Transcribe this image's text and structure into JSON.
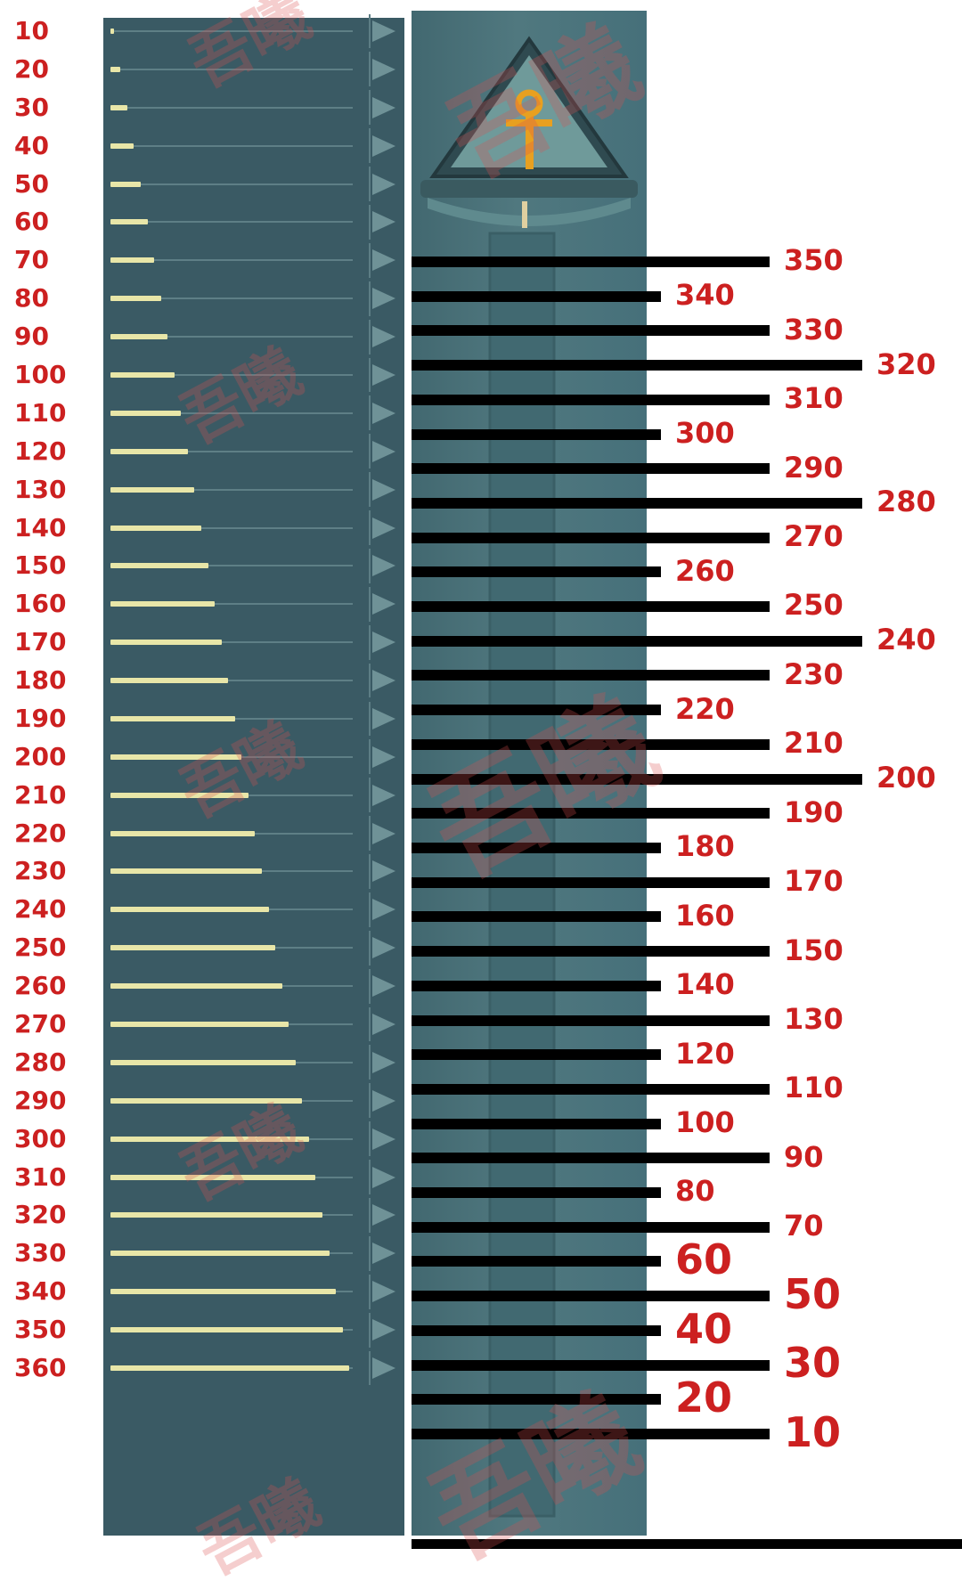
{
  "left_scale": {
    "labels": [
      "10",
      "20",
      "30",
      "40",
      "50",
      "60",
      "70",
      "80",
      "90",
      "100",
      "110",
      "120",
      "130",
      "140",
      "150",
      "160",
      "170",
      "180",
      "190",
      "200",
      "210",
      "220",
      "230",
      "240",
      "250",
      "260",
      "270",
      "280",
      "290",
      "300",
      "310",
      "320",
      "330",
      "340",
      "350",
      "360"
    ],
    "values": [
      10,
      20,
      30,
      40,
      50,
      60,
      70,
      80,
      90,
      100,
      110,
      120,
      130,
      140,
      150,
      160,
      170,
      180,
      190,
      200,
      210,
      220,
      230,
      240,
      250,
      260,
      270,
      280,
      290,
      300,
      310,
      320,
      330,
      340,
      350,
      360
    ],
    "max_value": 360
  },
  "right_scale": {
    "labels": [
      "350",
      "340",
      "330",
      "320",
      "310",
      "300",
      "290",
      "280",
      "270",
      "260",
      "250",
      "240",
      "230",
      "220",
      "210",
      "200",
      "190",
      "180",
      "170",
      "160",
      "150",
      "140",
      "130",
      "120",
      "110",
      "100",
      "90",
      "80",
      "70",
      "60",
      "50",
      "40",
      "30",
      "20",
      "10"
    ],
    "values": [
      350,
      340,
      330,
      320,
      310,
      300,
      290,
      280,
      270,
      260,
      250,
      240,
      230,
      220,
      210,
      200,
      190,
      180,
      170,
      160,
      150,
      140,
      130,
      120,
      110,
      100,
      90,
      80,
      70,
      60,
      50,
      40,
      30,
      20,
      10
    ]
  },
  "watermark": "吾曦",
  "colors": {
    "label_red": "#cc2020",
    "panel_bg": "#3a5a64",
    "bar_fill": "#e8e6a8",
    "marker_black": "#000000",
    "ankh_gold": "#e8a020"
  },
  "icons": {
    "slider_end": "arrow-ankh-icon",
    "top_emblem": "ankh-pyramid-icon"
  }
}
